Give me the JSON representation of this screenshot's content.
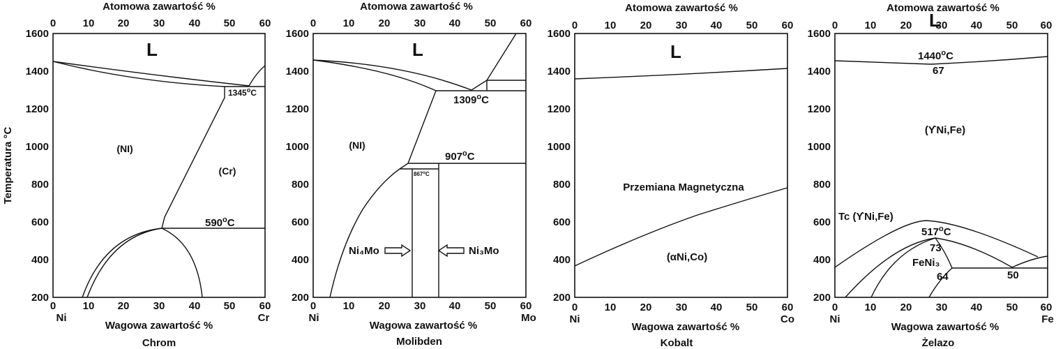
{
  "shared": {
    "top_axis_title": "Atomowa zawartość %",
    "bottom_axis_title": "Wagowa zawartość %",
    "y_axis_title": "Temperatura °C",
    "x_ticks": [
      "0",
      "10",
      "20",
      "30",
      "40",
      "50",
      "60"
    ],
    "y_ticks": [
      "1600",
      "1400",
      "1200",
      "1000",
      "800",
      "600",
      "400",
      "200"
    ],
    "x_range": [
      0,
      60
    ],
    "y_range": [
      200,
      1600
    ],
    "base_element": "Ni"
  },
  "panels": [
    {
      "alloy_name": "Chrom",
      "right_element": "Cr",
      "labels": {
        "liquid": "L",
        "solid_a": "(NI)",
        "solid_b": "(Cr)",
        "temp_eutectic": "1345",
        "temp_eutectoid": "590"
      }
    },
    {
      "alloy_name": "Molibden",
      "right_element": "Mo",
      "labels": {
        "liquid": "L",
        "solid_a": "(NI)",
        "temp_peritectic": "1309",
        "temp_907": "907",
        "temp_867": "867",
        "phase_ni4mo": "Ni₄Mo",
        "phase_ni3mo": "Ni₃Mo"
      }
    },
    {
      "alloy_name": "Kobalt",
      "right_element": "Co",
      "labels": {
        "liquid": "L",
        "magnetic": "Przemiana Magnetyczna",
        "solid": "(αNi,Co)"
      }
    },
    {
      "alloy_name": "Żelazo",
      "right_element": "Fe",
      "labels": {
        "liquid": "L",
        "temp_min": "1440",
        "comp_min": "67",
        "solid": "(ϒNi,Fe)",
        "curie": "Tc (ϒNi,Fe)",
        "temp_517": "517",
        "comp_73": "73",
        "fenix": "FeNi₃",
        "comp_64": "64",
        "comp_50": "50"
      }
    }
  ]
}
